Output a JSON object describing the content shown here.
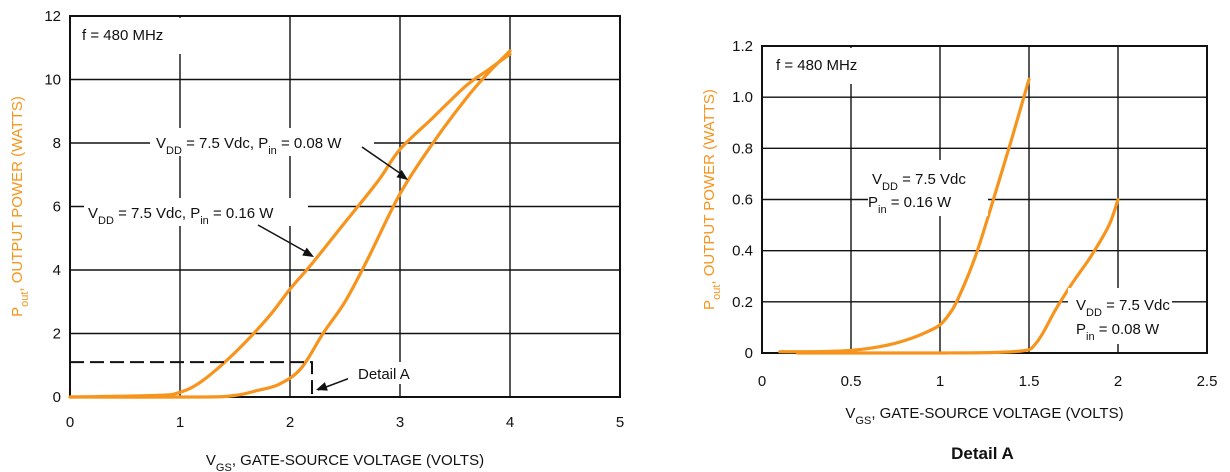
{
  "chart_data": [
    {
      "type": "line",
      "xlabel_main": "V",
      "xlabel_sub": "GS",
      "xlabel_rest": ", GATE-SOURCE VOLTAGE (VOLTS)",
      "ylabel_main": "P",
      "ylabel_sub": "out",
      "ylabel_rest": ", OUTPUT POWER (WATTS)",
      "xlim": [
        0,
        5
      ],
      "ylim": [
        0,
        12
      ],
      "xticks": [
        "0",
        "1",
        "2",
        "3",
        "4",
        "5"
      ],
      "yticks": [
        "0",
        "2",
        "4",
        "6",
        "8",
        "10",
        "12"
      ],
      "grid": true,
      "frequency_note": "f = 480 MHz",
      "series": [
        {
          "label_parts": [
            "V",
            "DD",
            " = 7.5 Vdc, P",
            "in",
            " = 0.16 W"
          ],
          "x": [
            0,
            0.8,
            1.0,
            1.2,
            1.5,
            1.8,
            2.0,
            2.2,
            2.5,
            2.8,
            3.0,
            3.3,
            3.6,
            3.8,
            4.0
          ],
          "y": [
            0,
            0.05,
            0.15,
            0.5,
            1.4,
            2.5,
            3.4,
            4.2,
            5.5,
            6.8,
            7.8,
            8.8,
            9.8,
            10.3,
            10.8
          ]
        },
        {
          "label_parts": [
            "V",
            "DD",
            " = 7.5 Vdc, P",
            "in",
            " = 0.08 W"
          ],
          "x": [
            0,
            1.2,
            1.5,
            1.7,
            1.9,
            2.1,
            2.3,
            2.5,
            2.7,
            3.0,
            3.3,
            3.6,
            3.8,
            4.0
          ],
          "y": [
            0,
            0,
            0.05,
            0.2,
            0.4,
            0.9,
            2.0,
            3.0,
            4.3,
            6.4,
            8.0,
            9.4,
            10.2,
            10.9
          ]
        }
      ],
      "detail_box": {
        "x": [
          0,
          2.2
        ],
        "y": [
          0,
          1.1
        ],
        "label": "Detail A"
      }
    },
    {
      "type": "line",
      "xlabel_main": "V",
      "xlabel_sub": "GS",
      "xlabel_rest": ", GATE-SOURCE VOLTAGE (VOLTS)",
      "ylabel_main": "P",
      "ylabel_sub": "out",
      "ylabel_rest": ", OUTPUT POWER (WATTS)",
      "xlim": [
        0,
        2.5
      ],
      "ylim": [
        0,
        1.2
      ],
      "xticks": [
        "0",
        "0.5",
        "1",
        "1.5",
        "2",
        "2.5"
      ],
      "yticks": [
        "0",
        "0.2",
        "0.4",
        "0.6",
        "0.8",
        "1.0",
        "1.2"
      ],
      "grid": true,
      "frequency_note": "f = 480 MHz",
      "caption": "Detail A",
      "series": [
        {
          "label_line1": [
            "V",
            "DD",
            " = 7.5 Vdc"
          ],
          "label_line2": [
            "P",
            "in",
            " = 0.16 W"
          ],
          "x": [
            0.1,
            0.3,
            0.5,
            0.7,
            0.85,
            0.95,
            1.0,
            1.05,
            1.1,
            1.2,
            1.3,
            1.4,
            1.5
          ],
          "y": [
            0.005,
            0.005,
            0.01,
            0.03,
            0.06,
            0.09,
            0.11,
            0.15,
            0.21,
            0.38,
            0.6,
            0.83,
            1.07
          ]
        },
        {
          "label_line1": [
            "V",
            "DD",
            " = 7.5 Vdc"
          ],
          "label_line2": [
            "P",
            "in",
            " = 0.08 W"
          ],
          "x": [
            0.2,
            0.6,
            1.0,
            1.3,
            1.48,
            1.53,
            1.58,
            1.65,
            1.75,
            1.85,
            1.95,
            2.0
          ],
          "y": [
            0,
            0,
            0,
            0.002,
            0.01,
            0.03,
            0.08,
            0.17,
            0.28,
            0.38,
            0.5,
            0.6
          ]
        }
      ]
    }
  ]
}
